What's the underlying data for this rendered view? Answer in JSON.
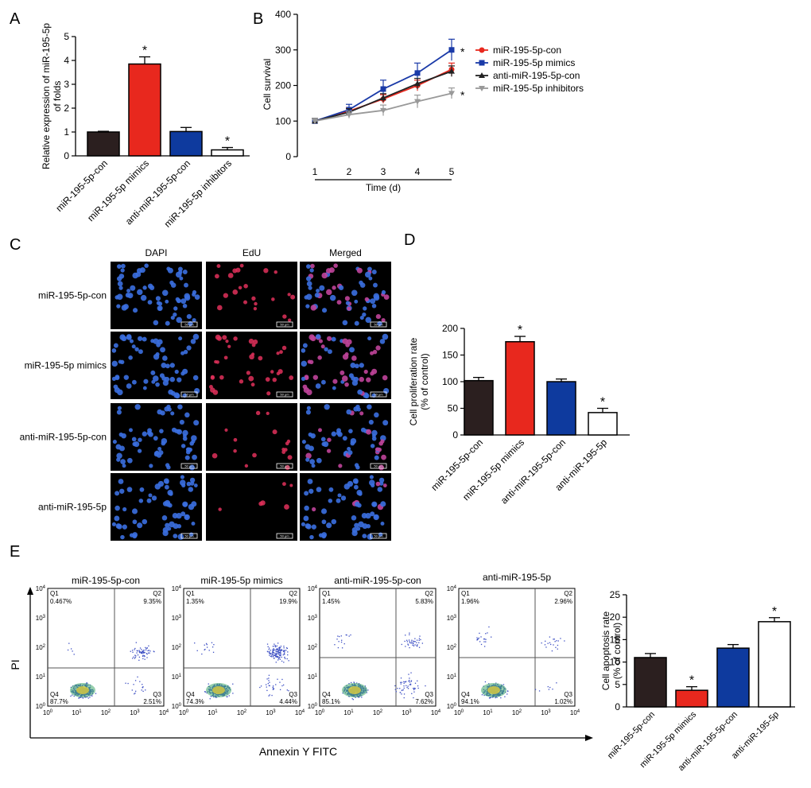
{
  "figure": {
    "panel_labels": [
      "A",
      "B",
      "C",
      "D",
      "E"
    ]
  },
  "colors": {
    "black": "#2b1f1f",
    "red": "#e8281e",
    "blue": "#0e3a9e",
    "white": "#ffffff",
    "line_red": "#e8281e",
    "line_blue": "#1a3aa8",
    "line_black": "#222222",
    "line_gray": "#999999"
  },
  "chart_data": [
    {
      "id": "A",
      "type": "bar",
      "ylabel_lines": [
        "Relative expression of miR-195-5p",
        "of folds"
      ],
      "ylim": [
        0,
        5
      ],
      "yticks": [
        0,
        1,
        2,
        3,
        4,
        5
      ],
      "categories": [
        "miR-195-5p-con",
        "miR-195-5p mimics",
        "anti-miR-195-5p-con",
        "miR-195-5p inhibitors"
      ],
      "values": [
        1.0,
        3.85,
        1.02,
        0.25
      ],
      "errors": [
        0.03,
        0.3,
        0.17,
        0.1
      ],
      "significance": [
        "",
        "*",
        "",
        "*"
      ],
      "bar_colors": [
        "#2b1f1f",
        "#e8281e",
        "#0e3a9e",
        "#ffffff"
      ]
    },
    {
      "id": "B",
      "type": "line",
      "ylabel": "Cell survival",
      "xlabel": "Time (d)",
      "ylim": [
        0,
        400
      ],
      "yticks": [
        0,
        100,
        200,
        300,
        400
      ],
      "x": [
        1,
        2,
        3,
        4,
        5
      ],
      "series": [
        {
          "name": "miR-195-5p-con",
          "values": [
            100,
            128,
            162,
            200,
            245
          ],
          "errors": [
            8,
            10,
            12,
            15,
            18
          ],
          "color": "#e8281e",
          "marker": "circle"
        },
        {
          "name": "miR-195-5p mimics",
          "values": [
            100,
            132,
            190,
            235,
            300
          ],
          "errors": [
            8,
            15,
            25,
            28,
            30
          ],
          "color": "#1a3aa8",
          "marker": "square"
        },
        {
          "name": "anti-miR-195-5p-con",
          "values": [
            100,
            125,
            165,
            205,
            240
          ],
          "errors": [
            8,
            10,
            12,
            15,
            15
          ],
          "color": "#222222",
          "marker": "triangle-up"
        },
        {
          "name": "miR-195-5p inhibitors",
          "values": [
            100,
            118,
            130,
            155,
            178
          ],
          "errors": [
            8,
            10,
            15,
            18,
            15
          ],
          "color": "#999999",
          "marker": "triangle-down"
        }
      ],
      "significance": [
        {
          "series": "miR-195-5p mimics",
          "label": "*"
        },
        {
          "series": "miR-195-5p inhibitors",
          "label": "*"
        }
      ]
    },
    {
      "id": "D",
      "type": "bar",
      "ylabel_lines": [
        "Cell proliferation rate",
        "(% of control)"
      ],
      "ylim": [
        0,
        200
      ],
      "yticks": [
        0,
        50,
        100,
        150,
        200
      ],
      "categories": [
        "miR-195-5p-con",
        "miR-195-5p mimics",
        "anti-miR-195-5p-con",
        "anti-miR-195-5p"
      ],
      "values": [
        102,
        175,
        100,
        42
      ],
      "errors": [
        6,
        10,
        5,
        8
      ],
      "significance": [
        "",
        "*",
        "",
        "*"
      ],
      "bar_colors": [
        "#2b1f1f",
        "#e8281e",
        "#0e3a9e",
        "#ffffff"
      ]
    },
    {
      "id": "E",
      "type": "bar",
      "ylabel_lines": [
        "Cell apoptosis rate",
        "(% of control)"
      ],
      "ylim": [
        0,
        25
      ],
      "yticks": [
        0,
        5,
        10,
        15,
        20,
        25
      ],
      "categories": [
        "miR-195-5p-con",
        "miR-195-5p mimics",
        "anti-miR-195-5p-con",
        "anti-miR-195-5p"
      ],
      "values": [
        11,
        3.7,
        13.1,
        19
      ],
      "errors": [
        0.9,
        0.8,
        0.8,
        0.9
      ],
      "significance": [
        "",
        "*",
        "",
        "*"
      ],
      "bar_colors": [
        "#2b1f1f",
        "#e8281e",
        "#0e3a9e",
        "#ffffff"
      ]
    }
  ],
  "panel_c": {
    "column_headers": [
      "DAPI",
      "EdU",
      "Merged"
    ],
    "row_labels": [
      "miR-195-5p-con",
      "miR-195-5p mimics",
      "anti-miR-195-5p-con",
      "anti-miR-195-5p"
    ],
    "scale_bar": "50 μm",
    "edu_density": [
      0.35,
      0.55,
      0.25,
      0.1
    ]
  },
  "flow": {
    "y_axis": "PI",
    "x_axis": "Annexin Y FITC",
    "y_tick_exponents": [
      "0",
      "1",
      "2",
      "3",
      "4"
    ],
    "tick_base": "10",
    "panels": [
      {
        "title": "miR-195-5p-con",
        "q1_label": "Q1",
        "q1": "0.467%",
        "q2_label": "Q2",
        "q2": "9.35%",
        "q3_label": "Q3",
        "q3": "2.51%",
        "q4_label": "Q4",
        "q4": "87.7%"
      },
      {
        "title": "miR-195-5p mimics",
        "q1_label": "Q1",
        "q1": "1.35%",
        "q2_label": "Q2",
        "q2": "19.9%",
        "q3_label": "Q3",
        "q3": "4.44%",
        "q4_label": "Q4",
        "q4": "74.3%"
      },
      {
        "title": "anti-miR-195-5p-con",
        "q1_label": "Q1",
        "q1": "1.45%",
        "q2_label": "Q2",
        "q2": "5.83%",
        "q3_label": "Q3",
        "q3": "7.62%",
        "q4_label": "Q4",
        "q4": "85.1%"
      },
      {
        "title": "anti-miR-195-5p",
        "q1_label": "Q1",
        "q1": "1.96%",
        "q2_label": "Q2",
        "q2": "2.96%",
        "q3_label": "Q3",
        "q3": "1.02%",
        "q4_label": "Q4",
        "q4": "94.1%"
      }
    ]
  }
}
